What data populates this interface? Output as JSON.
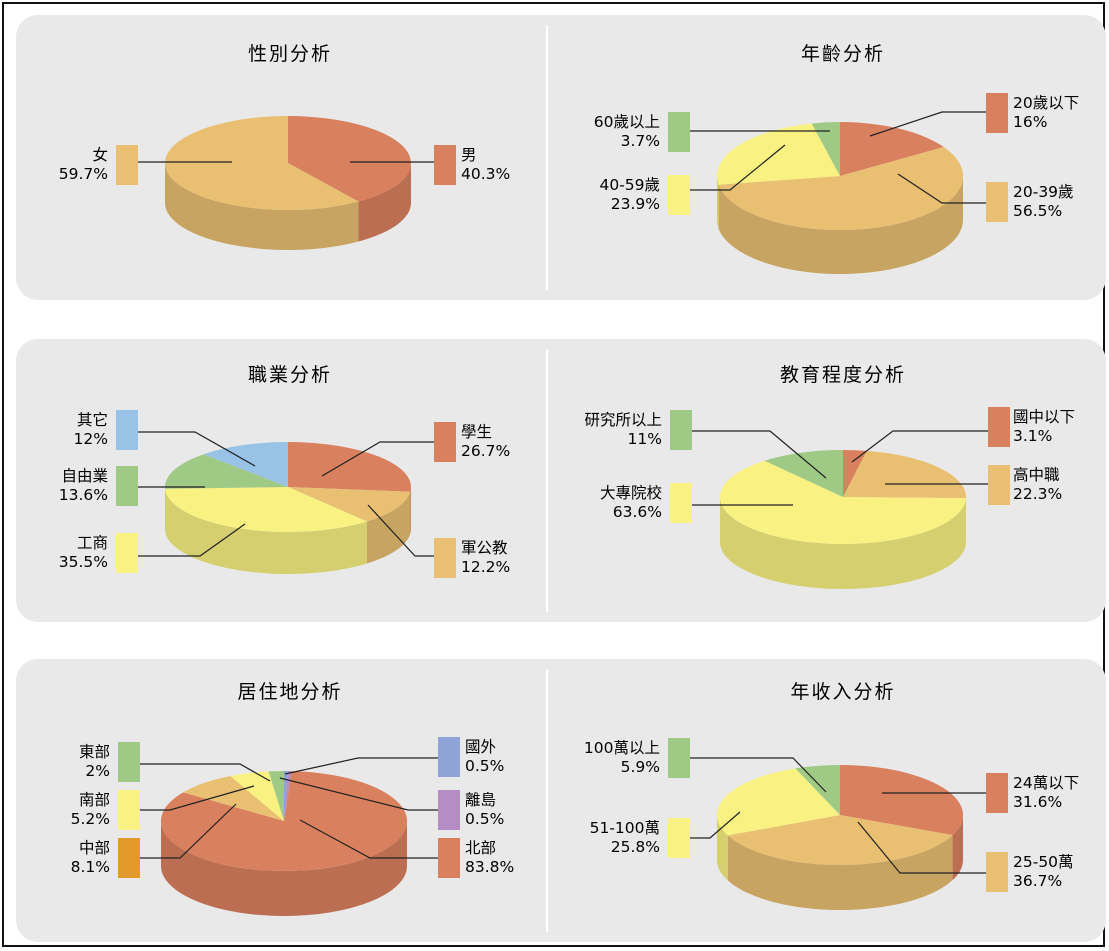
{
  "chart_data": [
    {
      "type": "pie",
      "title": "性別分析",
      "categories": [
        "男",
        "女"
      ],
      "values": [
        40.3,
        59.7
      ],
      "value_labels": [
        "40.3%",
        "59.7%"
      ],
      "colors": [
        "#d9805f",
        "#e9bf72"
      ]
    },
    {
      "type": "pie",
      "title": "年齡分析",
      "categories": [
        "20歲以下",
        "20-39歲",
        "40-59歲",
        "60歲以上"
      ],
      "values": [
        16,
        56.5,
        23.9,
        3.7
      ],
      "value_labels": [
        "16%",
        "56.5%",
        "23.9%",
        "3.7%"
      ],
      "colors": [
        "#d9805f",
        "#e9bf72",
        "#f9f182",
        "#9fca86"
      ]
    },
    {
      "type": "pie",
      "title": "職業分析",
      "categories": [
        "學生",
        "軍公教",
        "工商",
        "自由業",
        "其它"
      ],
      "values": [
        26.7,
        12.2,
        35.5,
        13.6,
        12
      ],
      "value_labels": [
        "26.7%",
        "12.2%",
        "35.5%",
        "13.6%",
        "12%"
      ],
      "colors": [
        "#d9805f",
        "#e9bf72",
        "#f9f182",
        "#9fca86",
        "#98c3e6"
      ]
    },
    {
      "type": "pie",
      "title": "教育程度分析",
      "categories": [
        "國中以下",
        "高中職",
        "大專院校",
        "研究所以上"
      ],
      "values": [
        3.1,
        22.3,
        63.6,
        11
      ],
      "value_labels": [
        "3.1%",
        "22.3%",
        "63.6%",
        "11%"
      ],
      "colors": [
        "#d9805f",
        "#e9bf72",
        "#f9f182",
        "#9fca86"
      ]
    },
    {
      "type": "pie",
      "title": "居住地分析",
      "categories": [
        "國外",
        "離島",
        "北部",
        "中部",
        "南部",
        "東部"
      ],
      "values": [
        0.5,
        0.5,
        83.8,
        8.1,
        5.2,
        2
      ],
      "value_labels": [
        "0.5%",
        "0.5%",
        "83.8%",
        "8.1%",
        "5.2%",
        "2%"
      ],
      "colors": [
        "#8fa3d8",
        "#b58cc4",
        "#d9805f",
        "#e9bf72",
        "#f9f182",
        "#9fca86"
      ],
      "legend_colors": [
        "#8fa3d8",
        "#b58cc4",
        "#d9805f",
        "#e39a2a",
        "#f9f182",
        "#9fca86"
      ]
    },
    {
      "type": "pie",
      "title": "年收入分析",
      "categories": [
        "24萬以下",
        "25-50萬",
        "51-100萬",
        "100萬以上"
      ],
      "values": [
        31.6,
        36.7,
        25.8,
        5.9
      ],
      "value_labels": [
        "31.6%",
        "36.7%",
        "25.8%",
        "5.9%"
      ],
      "colors": [
        "#d9805f",
        "#e9bf72",
        "#f9f182",
        "#9fca86"
      ]
    }
  ]
}
